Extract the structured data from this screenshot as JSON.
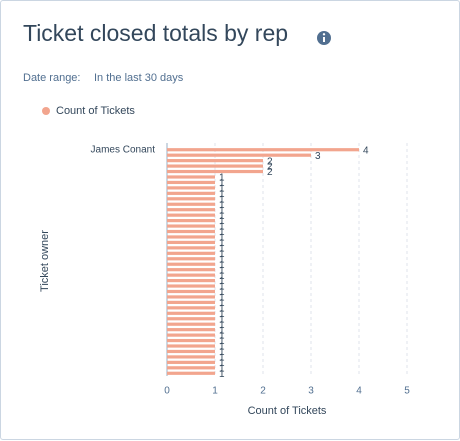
{
  "chart_data": {
    "type": "bar",
    "orientation": "horizontal",
    "title": "Ticket closed totals by rep",
    "date_range_label": "Date range:",
    "date_range_value": "In the last 30 days",
    "x_label": "Count of Tickets",
    "y_label": "Ticket owner",
    "categories": [
      "James Conant",
      null,
      null,
      null,
      null,
      null,
      null,
      null,
      null,
      null,
      null,
      null,
      null,
      null,
      null,
      null,
      null,
      null,
      null,
      null,
      null,
      null,
      null,
      null,
      null,
      null,
      null,
      null,
      null,
      null,
      null,
      null,
      null,
      null,
      null,
      null,
      null,
      null,
      null,
      null,
      null,
      null
    ],
    "series": [
      {
        "name": "Count of Tickets",
        "color": "#f2a58e",
        "values": [
          4,
          3,
          2,
          2,
          2,
          1,
          1,
          1,
          1,
          1,
          1,
          1,
          1,
          1,
          1,
          1,
          1,
          1,
          1,
          1,
          1,
          1,
          1,
          1,
          1,
          1,
          1,
          1,
          1,
          1,
          1,
          1,
          1,
          1,
          1,
          1,
          1,
          1,
          1,
          1,
          1,
          1
        ]
      }
    ],
    "xlim": [
      0,
      5
    ],
    "xticks": [
      0,
      1,
      2,
      3,
      4,
      5
    ],
    "grid": true,
    "legend": "top-left"
  }
}
